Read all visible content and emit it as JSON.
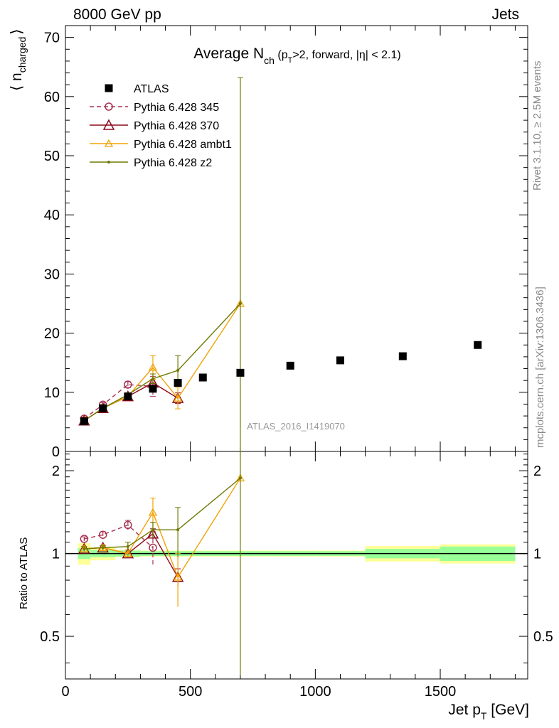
{
  "header": {
    "left": "8000 GeV pp",
    "right": "Jets"
  },
  "side_labels": {
    "rivet": "Rivet 3.1.10, ≥ 2.5M events",
    "mcplots": "mcplots.cern.ch [arXiv:1306.3436]"
  },
  "chart_data": {
    "type": "scatter",
    "title_parts": {
      "main": "Average N",
      "sub": "ch",
      "rest1": " (p",
      "sub2": "T",
      "rest2": ">2, forward, |η| < 2.1)"
    },
    "watermark": "ATLAS_2016_I1419070",
    "xlabel_parts": {
      "main": "Jet p",
      "sub": "T",
      "rest": " [GeV]"
    },
    "ylabel_parts": {
      "left": "⟨ n",
      "sub": "charged",
      "right": "⟩"
    },
    "ratio_ylabel": "Ratio to ATLAS",
    "xlim": [
      0,
      1850
    ],
    "ylim": [
      0,
      72
    ],
    "ratio_ylim": [
      0.35,
      2.35
    ],
    "x_ticks": [
      0,
      500,
      1000,
      1500
    ],
    "x_tick_labels": [
      "0",
      "500",
      "1000",
      "1500"
    ],
    "y_ticks": [
      0,
      10,
      20,
      30,
      40,
      50,
      60,
      70
    ],
    "y_tick_labels": [
      "0",
      "10",
      "20",
      "30",
      "40",
      "50",
      "60",
      "70"
    ],
    "ratio_ticks": [
      0.5,
      1,
      2
    ],
    "ratio_tick_labels": [
      "0.5",
      "1",
      "2"
    ],
    "legend_position": "top-left",
    "data": {
      "name": "ATLAS",
      "color": "#000000",
      "bins": [
        [
          50,
          100
        ],
        [
          100,
          200
        ],
        [
          200,
          300
        ],
        [
          300,
          400
        ],
        [
          400,
          500
        ],
        [
          500,
          600
        ],
        [
          600,
          800
        ],
        [
          800,
          1000
        ],
        [
          1000,
          1200
        ],
        [
          1200,
          1500
        ],
        [
          1500,
          1800
        ]
      ],
      "x": [
        75,
        150,
        250,
        350,
        450,
        550,
        700,
        900,
        1100,
        1350,
        1650
      ],
      "y": [
        5.1,
        7.3,
        9.3,
        10.6,
        11.6,
        12.5,
        13.3,
        14.5,
        15.4,
        16.1,
        18.0
      ],
      "band_inner": [
        0.045,
        0.03,
        0.025,
        0.02,
        0.02,
        0.02,
        0.02,
        0.02,
        0.02,
        0.04,
        0.06
      ],
      "band_outer": [
        0.09,
        0.055,
        0.03,
        0.025,
        0.025,
        0.025,
        0.025,
        0.025,
        0.025,
        0.065,
        0.08
      ]
    },
    "series": [
      {
        "name": "Pythia 6.428 345",
        "color": "#a83250",
        "marker": "circle",
        "dash": "6,4",
        "x": [
          75,
          150,
          250,
          350
        ],
        "y": [
          5.55,
          7.9,
          11.3,
          11.0
        ],
        "yerr": [
          0.25,
          0.35,
          0.5,
          1.7
        ],
        "ratio": [
          1.13,
          1.17,
          1.27,
          1.05
        ],
        "ratio_err": [
          0.02,
          0.03,
          0.05,
          0.15
        ]
      },
      {
        "name": "Pythia 6.428 370",
        "color": "#8b0a1c",
        "marker": "triangle",
        "dash": "",
        "x": [
          75,
          150,
          250,
          350,
          450
        ],
        "y": [
          5.2,
          7.3,
          9.3,
          11.6,
          9.0
        ],
        "yerr": [
          0.15,
          0.2,
          0.3,
          0.6,
          0.9
        ],
        "ratio": [
          1.04,
          1.05,
          1.0,
          1.18,
          0.82
        ],
        "ratio_err": [
          0.02,
          0.02,
          0.03,
          0.05,
          0.06
        ]
      },
      {
        "name": "Pythia 6.428 ambt1",
        "color": "#f0a30a",
        "marker": "triangle-small",
        "dash": "",
        "x": [
          75,
          150,
          250,
          350,
          450,
          700
        ],
        "y": [
          5.2,
          7.3,
          9.3,
          14.2,
          9.0,
          25.0
        ],
        "yerr": [
          0.15,
          0.2,
          0.3,
          2.0,
          1.8,
          0.0
        ],
        "ratio": [
          1.04,
          1.05,
          1.0,
          1.41,
          0.82,
          1.88
        ],
        "ratio_err": [
          0.02,
          0.02,
          0.03,
          0.18,
          0.18,
          0.0
        ]
      },
      {
        "name": "Pythia 6.428 z2",
        "color": "#6e7a00",
        "marker": "dot",
        "dash": "",
        "x": [
          75,
          150,
          250,
          350,
          450,
          700
        ],
        "y": [
          5.2,
          7.3,
          9.6,
          12.3,
          13.7,
          25.0
        ],
        "yerr": [
          0.15,
          0.2,
          0.3,
          0.8,
          2.5,
          38.2
        ],
        "ratio": [
          1.04,
          1.05,
          1.06,
          1.22,
          1.22,
          1.88
        ],
        "ratio_err": [
          0.02,
          0.02,
          0.04,
          0.08,
          0.25,
          2.0
        ]
      }
    ]
  }
}
